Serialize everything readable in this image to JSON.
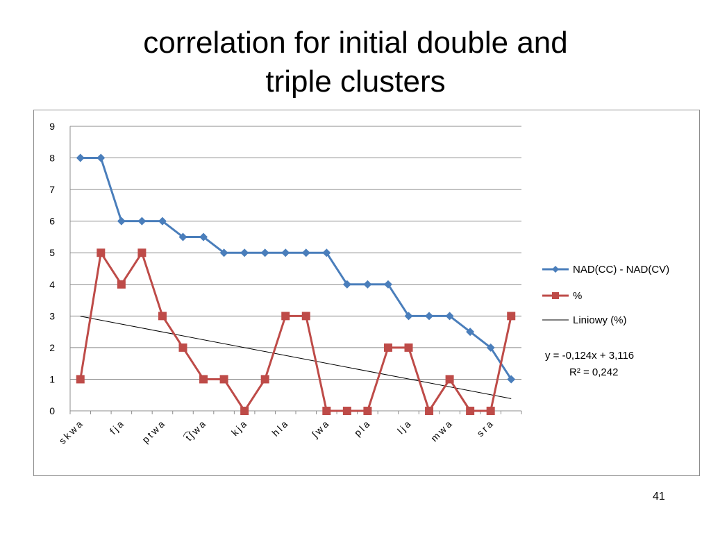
{
  "slide": {
    "title_line1": "correlation for initial double and",
    "title_line2": "triple clusters",
    "page_number": "41"
  },
  "chart_data": {
    "type": "line",
    "title": "",
    "xlabel": "",
    "ylabel": "",
    "ylim": [
      0,
      9
    ],
    "yticks": [
      0,
      1,
      2,
      3,
      4,
      5,
      6,
      7,
      8,
      9
    ],
    "grid": true,
    "legend_position": "right",
    "categories": [
      "skwa",
      "",
      "fja",
      "",
      "ptwa",
      "",
      "t͡ʃwa",
      "",
      "kja",
      "",
      "hla",
      "",
      "ʃwa",
      "",
      "pla",
      "",
      "lja",
      "",
      "mwa",
      "",
      "sra",
      ""
    ],
    "series": [
      {
        "name": "NAD(CC) - NAD(CV)",
        "color": "#4a7ebb",
        "marker": "diamond",
        "values": [
          8,
          8,
          6,
          6,
          6,
          5.5,
          5.5,
          5,
          5,
          5,
          5,
          5,
          5,
          4,
          4,
          4,
          3,
          3,
          3,
          2.5,
          2,
          1
        ]
      },
      {
        "name": "%",
        "color": "#be4b48",
        "marker": "square",
        "values": [
          1,
          5,
          4,
          5,
          3,
          2,
          1,
          1,
          0,
          1,
          3,
          3,
          0,
          0,
          0,
          2,
          2,
          0,
          1,
          0,
          0,
          3
        ]
      }
    ],
    "trendline": {
      "name": "Liniowy (%)",
      "type": "linear",
      "slope": -0.124,
      "intercept": 3.116,
      "color": "#000000"
    },
    "annotation": {
      "equation": "y = -0,124x + 3,116",
      "r_squared": "R² = 0,242"
    }
  }
}
